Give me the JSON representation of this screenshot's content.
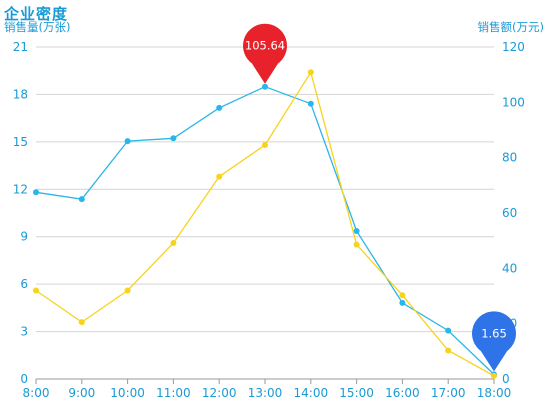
{
  "chart_data": {
    "type": "line",
    "title": "企业密度",
    "y_left_label": "销售量(万张)",
    "y_right_label": "销售额(万元)",
    "categories": [
      "8:00",
      "9:00",
      "10:00",
      "11:00",
      "12:00",
      "13:00",
      "14:00",
      "15:00",
      "16:00",
      "17:00",
      "18:00"
    ],
    "y_left_ticks": [
      0,
      3,
      6,
      9,
      12,
      15,
      18,
      21
    ],
    "y_right_ticks": [
      0,
      20,
      40,
      60,
      80,
      100,
      120
    ],
    "y_left_range": [
      0,
      21
    ],
    "y_right_range": [
      0,
      120
    ],
    "series": [
      {
        "axis": "right",
        "color": "#29b6e8",
        "values": [
          67.5,
          65,
          86,
          87,
          98,
          105.64,
          99.5,
          53.5,
          27.5,
          17.5,
          1.65
        ]
      },
      {
        "axis": "left",
        "color": "#f7d31e",
        "values": [
          5.6,
          3.6,
          5.6,
          8.6,
          12.8,
          14.8,
          19.4,
          8.5,
          5.3,
          1.8,
          0.2
        ]
      }
    ],
    "markers": [
      {
        "series": 0,
        "index": 5,
        "label": "105.64",
        "color": "#e8222a"
      },
      {
        "series": 0,
        "index": 10,
        "label": "1.65",
        "color": "#2f73e8"
      }
    ],
    "colors": {
      "axis_text": "#1a9ad6",
      "grid": "#d4d4d4"
    },
    "grid": true
  }
}
